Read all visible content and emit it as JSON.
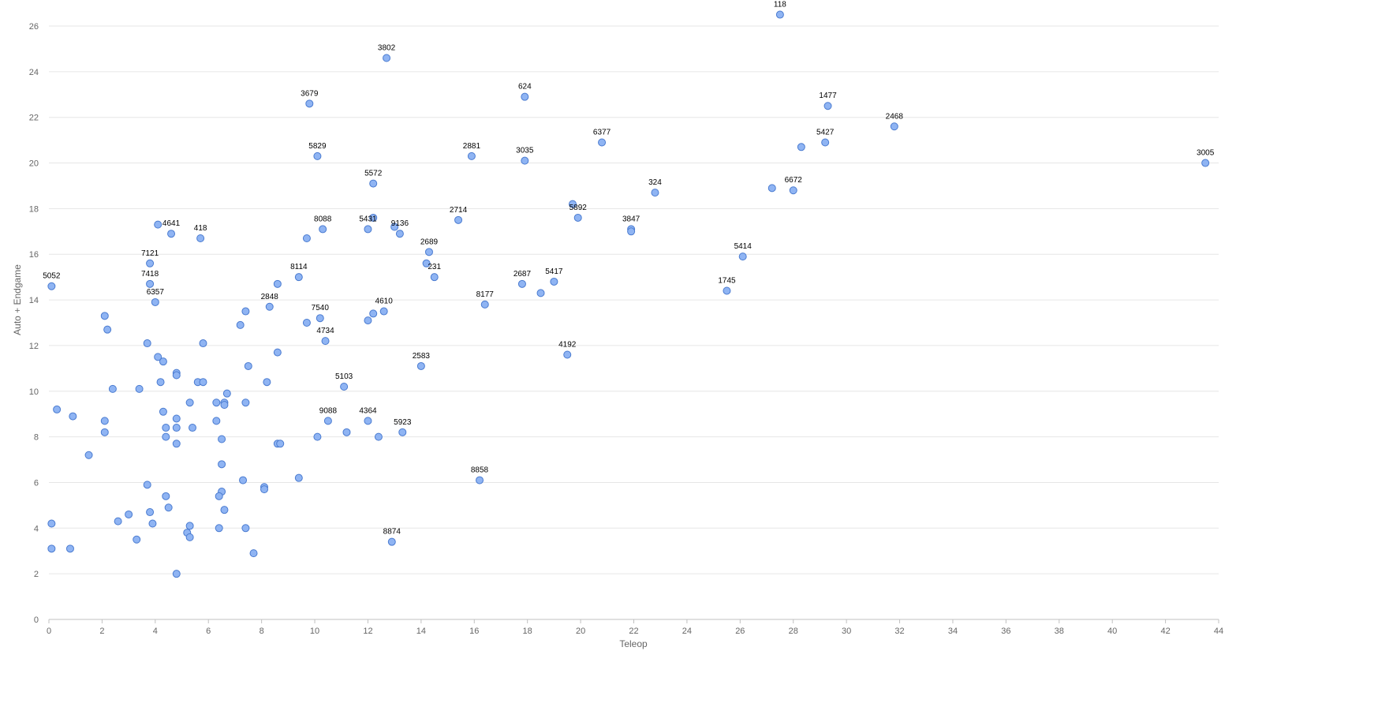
{
  "colors": {
    "point_fill": "#8fb4f3",
    "point_stroke": "#4a7bd0",
    "grid": "#e6e6e6"
  },
  "chart_data": {
    "type": "scatter",
    "title": "",
    "xlabel": "Teleop",
    "ylabel": "Auto + Endgame",
    "xlim": [
      0,
      44
    ],
    "ylim": [
      0,
      26
    ],
    "x_ticks": [
      0,
      2,
      4,
      6,
      8,
      10,
      12,
      14,
      16,
      18,
      20,
      22,
      24,
      26,
      28,
      30,
      32,
      34,
      36,
      38,
      40,
      42,
      44
    ],
    "y_ticks": [
      0,
      2,
      4,
      6,
      8,
      10,
      12,
      14,
      16,
      18,
      20,
      22,
      24,
      26
    ],
    "grid": "horizontal",
    "points": [
      {
        "x": 27.5,
        "y": 26.5,
        "label": "118"
      },
      {
        "x": 12.7,
        "y": 24.6,
        "label": "3802"
      },
      {
        "x": 17.9,
        "y": 22.9,
        "label": "624"
      },
      {
        "x": 9.8,
        "y": 22.6,
        "label": "3679"
      },
      {
        "x": 29.3,
        "y": 22.5,
        "label": "1477"
      },
      {
        "x": 31.8,
        "y": 21.6,
        "label": "2468"
      },
      {
        "x": 20.8,
        "y": 20.9,
        "label": "6377"
      },
      {
        "x": 29.2,
        "y": 20.9,
        "label": "5427"
      },
      {
        "x": 10.1,
        "y": 20.3,
        "label": "5829"
      },
      {
        "x": 15.9,
        "y": 20.3,
        "label": "2881"
      },
      {
        "x": 17.9,
        "y": 20.1,
        "label": "3035"
      },
      {
        "x": 43.5,
        "y": 20.0,
        "label": "3005"
      },
      {
        "x": 12.2,
        "y": 19.1,
        "label": "5572"
      },
      {
        "x": 22.8,
        "y": 18.7,
        "label": "324"
      },
      {
        "x": 28.0,
        "y": 18.8,
        "label": "6672"
      },
      {
        "x": 19.9,
        "y": 17.6,
        "label": "5892"
      },
      {
        "x": 15.4,
        "y": 17.5,
        "label": "2714"
      },
      {
        "x": 12.0,
        "y": 17.1,
        "label": "5431"
      },
      {
        "x": 13.2,
        "y": 16.9,
        "label": "9136"
      },
      {
        "x": 10.3,
        "y": 17.1,
        "label": "8088"
      },
      {
        "x": 21.9,
        "y": 17.1,
        "label": "3847"
      },
      {
        "x": 4.6,
        "y": 16.9,
        "label": "4641"
      },
      {
        "x": 5.7,
        "y": 16.7,
        "label": "418"
      },
      {
        "x": 14.3,
        "y": 16.1,
        "label": "2689"
      },
      {
        "x": 26.1,
        "y": 15.9,
        "label": "5414"
      },
      {
        "x": 3.8,
        "y": 15.6,
        "label": "7121"
      },
      {
        "x": 14.5,
        "y": 15.0,
        "label": "231"
      },
      {
        "x": 9.4,
        "y": 15.0,
        "label": "8114"
      },
      {
        "x": 0.1,
        "y": 14.6,
        "label": "5052"
      },
      {
        "x": 3.8,
        "y": 14.7,
        "label": "7418"
      },
      {
        "x": 17.8,
        "y": 14.7,
        "label": "2687"
      },
      {
        "x": 19.0,
        "y": 14.8,
        "label": "5417"
      },
      {
        "x": 25.5,
        "y": 14.4,
        "label": "1745"
      },
      {
        "x": 4.0,
        "y": 13.9,
        "label": "6357"
      },
      {
        "x": 16.4,
        "y": 13.8,
        "label": "8177"
      },
      {
        "x": 8.3,
        "y": 13.7,
        "label": "2848"
      },
      {
        "x": 12.6,
        "y": 13.5,
        "label": "4610"
      },
      {
        "x": 10.2,
        "y": 13.2,
        "label": "7540"
      },
      {
        "x": 10.4,
        "y": 12.2,
        "label": "4734"
      },
      {
        "x": 19.5,
        "y": 11.6,
        "label": "4192"
      },
      {
        "x": 14.0,
        "y": 11.1,
        "label": "2583"
      },
      {
        "x": 11.1,
        "y": 10.2,
        "label": "5103"
      },
      {
        "x": 10.5,
        "y": 8.7,
        "label": "9088"
      },
      {
        "x": 12.0,
        "y": 8.7,
        "label": "4364"
      },
      {
        "x": 13.3,
        "y": 8.2,
        "label": "5923"
      },
      {
        "x": 16.2,
        "y": 6.1,
        "label": "8858"
      },
      {
        "x": 12.9,
        "y": 3.4,
        "label": "8874"
      },
      {
        "x": 4.1,
        "y": 17.3
      },
      {
        "x": 9.7,
        "y": 16.7
      },
      {
        "x": 12.2,
        "y": 17.6
      },
      {
        "x": 13.0,
        "y": 17.2
      },
      {
        "x": 19.7,
        "y": 18.2
      },
      {
        "x": 21.9,
        "y": 17.0
      },
      {
        "x": 27.2,
        "y": 18.9
      },
      {
        "x": 28.3,
        "y": 20.7
      },
      {
        "x": 14.2,
        "y": 15.6
      },
      {
        "x": 18.5,
        "y": 14.3
      },
      {
        "x": 8.6,
        "y": 14.7
      },
      {
        "x": 7.4,
        "y": 13.5
      },
      {
        "x": 7.2,
        "y": 12.9
      },
      {
        "x": 9.7,
        "y": 13.0
      },
      {
        "x": 12.0,
        "y": 13.1
      },
      {
        "x": 12.2,
        "y": 13.4
      },
      {
        "x": 2.1,
        "y": 13.3
      },
      {
        "x": 2.2,
        "y": 12.7
      },
      {
        "x": 3.7,
        "y": 12.1
      },
      {
        "x": 5.8,
        "y": 12.1
      },
      {
        "x": 8.6,
        "y": 11.7
      },
      {
        "x": 4.1,
        "y": 11.5
      },
      {
        "x": 4.3,
        "y": 11.3
      },
      {
        "x": 7.5,
        "y": 11.1
      },
      {
        "x": 4.8,
        "y": 10.8
      },
      {
        "x": 4.8,
        "y": 10.7
      },
      {
        "x": 4.2,
        "y": 10.4
      },
      {
        "x": 5.6,
        "y": 10.4
      },
      {
        "x": 5.8,
        "y": 10.4
      },
      {
        "x": 8.2,
        "y": 10.4
      },
      {
        "x": 2.4,
        "y": 10.1
      },
      {
        "x": 3.4,
        "y": 10.1
      },
      {
        "x": 6.7,
        "y": 9.9
      },
      {
        "x": 5.3,
        "y": 9.5
      },
      {
        "x": 6.3,
        "y": 9.5
      },
      {
        "x": 6.6,
        "y": 9.5
      },
      {
        "x": 6.6,
        "y": 9.4
      },
      {
        "x": 7.4,
        "y": 9.5
      },
      {
        "x": 0.3,
        "y": 9.2
      },
      {
        "x": 0.9,
        "y": 8.9
      },
      {
        "x": 4.3,
        "y": 9.1
      },
      {
        "x": 4.8,
        "y": 8.8
      },
      {
        "x": 2.1,
        "y": 8.7
      },
      {
        "x": 6.3,
        "y": 8.7
      },
      {
        "x": 4.4,
        "y": 8.4
      },
      {
        "x": 4.8,
        "y": 8.4
      },
      {
        "x": 5.4,
        "y": 8.4
      },
      {
        "x": 2.1,
        "y": 8.2
      },
      {
        "x": 11.2,
        "y": 8.2
      },
      {
        "x": 4.4,
        "y": 8.0
      },
      {
        "x": 10.1,
        "y": 8.0
      },
      {
        "x": 12.4,
        "y": 8.0
      },
      {
        "x": 6.5,
        "y": 7.9
      },
      {
        "x": 4.8,
        "y": 7.7
      },
      {
        "x": 8.6,
        "y": 7.7
      },
      {
        "x": 8.7,
        "y": 7.7
      },
      {
        "x": 1.5,
        "y": 7.2
      },
      {
        "x": 6.5,
        "y": 6.8
      },
      {
        "x": 9.4,
        "y": 6.2
      },
      {
        "x": 7.3,
        "y": 6.1
      },
      {
        "x": 3.7,
        "y": 5.9
      },
      {
        "x": 8.1,
        "y": 5.8
      },
      {
        "x": 8.1,
        "y": 5.7
      },
      {
        "x": 6.5,
        "y": 5.6
      },
      {
        "x": 4.4,
        "y": 5.4
      },
      {
        "x": 6.4,
        "y": 5.4
      },
      {
        "x": 4.5,
        "y": 4.9
      },
      {
        "x": 6.6,
        "y": 4.8
      },
      {
        "x": 3.8,
        "y": 4.7
      },
      {
        "x": 3.0,
        "y": 4.6
      },
      {
        "x": 2.6,
        "y": 4.3
      },
      {
        "x": 0.1,
        "y": 4.2
      },
      {
        "x": 3.9,
        "y": 4.2
      },
      {
        "x": 5.3,
        "y": 4.1
      },
      {
        "x": 6.4,
        "y": 4.0
      },
      {
        "x": 7.4,
        "y": 4.0
      },
      {
        "x": 5.2,
        "y": 3.8
      },
      {
        "x": 5.3,
        "y": 3.6
      },
      {
        "x": 3.3,
        "y": 3.5
      },
      {
        "x": 0.1,
        "y": 3.1
      },
      {
        "x": 0.8,
        "y": 3.1
      },
      {
        "x": 7.7,
        "y": 2.9
      },
      {
        "x": 4.8,
        "y": 2.0
      }
    ]
  }
}
